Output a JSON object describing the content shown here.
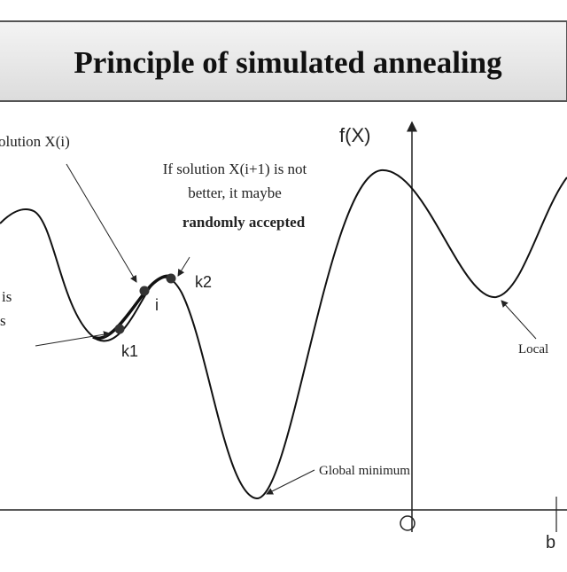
{
  "header": {
    "title": "Principle of simulated annealing"
  },
  "annotations": {
    "solution": "olution X(i)",
    "not_better_1": "If solution X(i+1) is not",
    "not_better_2": "better, it maybe",
    "not_better_3": "randomly accepted",
    "left_1": "is",
    "left_2": "s",
    "global": "Global minimum",
    "local": "Local"
  },
  "axis": {
    "y_label": "f(X)",
    "origin": "O",
    "b": "b"
  },
  "points": {
    "k1": "k1",
    "i": "i",
    "k2": "k2"
  }
}
